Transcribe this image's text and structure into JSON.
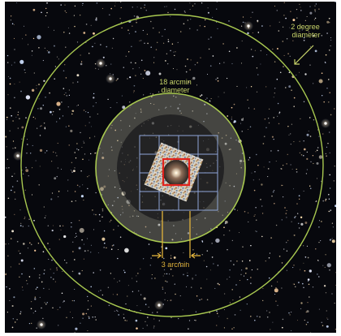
{
  "annotations": {
    "outer_circle_label_line1": "2 degree",
    "outer_circle_label_line2": "diameter",
    "inner_circle_label_line1": "18 arcmin",
    "inner_circle_label_line2": "diameter",
    "scale_label": "3 arcmin"
  },
  "colors": {
    "outer_circle": "#a8c850",
    "inner_ring": "#9aa37a",
    "grid": "#8fa6d8",
    "center_box": "#e0221c",
    "scale_bracket": "#e0b23a"
  }
}
